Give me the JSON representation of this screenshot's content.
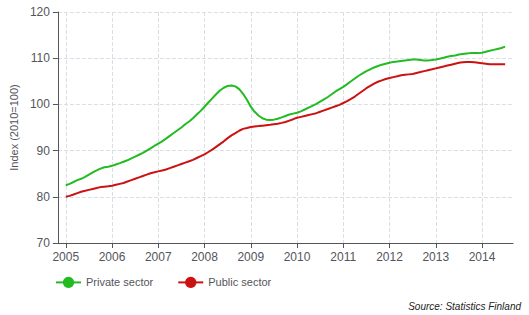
{
  "chart_data": {
    "type": "line",
    "ylabel": "Index (2010=100)",
    "annotations": [
      "Source: Statistics Finland"
    ],
    "x": [
      2005.0,
      2005.083,
      2005.167,
      2005.25,
      2005.333,
      2005.417,
      2005.5,
      2005.583,
      2005.667,
      2005.75,
      2005.833,
      2005.917,
      2006.0,
      2006.083,
      2006.167,
      2006.25,
      2006.333,
      2006.417,
      2006.5,
      2006.583,
      2006.667,
      2006.75,
      2006.833,
      2006.917,
      2007.0,
      2007.083,
      2007.167,
      2007.25,
      2007.333,
      2007.417,
      2007.5,
      2007.583,
      2007.667,
      2007.75,
      2007.833,
      2007.917,
      2008.0,
      2008.083,
      2008.167,
      2008.25,
      2008.333,
      2008.417,
      2008.5,
      2008.583,
      2008.667,
      2008.75,
      2008.833,
      2008.917,
      2009.0,
      2009.083,
      2009.167,
      2009.25,
      2009.333,
      2009.417,
      2009.5,
      2009.583,
      2009.667,
      2009.75,
      2009.833,
      2009.917,
      2010.0,
      2010.083,
      2010.167,
      2010.25,
      2010.333,
      2010.417,
      2010.5,
      2010.583,
      2010.667,
      2010.75,
      2010.833,
      2010.917,
      2011.0,
      2011.083,
      2011.167,
      2011.25,
      2011.333,
      2011.417,
      2011.5,
      2011.583,
      2011.667,
      2011.75,
      2011.833,
      2011.917,
      2012.0,
      2012.083,
      2012.167,
      2012.25,
      2012.333,
      2012.417,
      2012.5,
      2012.583,
      2012.667,
      2012.75,
      2012.833,
      2012.917,
      2013.0,
      2013.083,
      2013.167,
      2013.25,
      2013.333,
      2013.417,
      2013.5,
      2013.583,
      2013.667,
      2013.75,
      2013.833,
      2013.917,
      2014.0,
      2014.083,
      2014.167,
      2014.25,
      2014.333,
      2014.417,
      2014.5
    ],
    "series": [
      {
        "name": "Private sector",
        "color": "#22bb22",
        "values": [
          82.5,
          82.8,
          83.2,
          83.6,
          83.9,
          84.3,
          84.8,
          85.3,
          85.7,
          86.1,
          86.4,
          86.5,
          86.7,
          87.0,
          87.3,
          87.6,
          87.9,
          88.3,
          88.7,
          89.1,
          89.5,
          90.0,
          90.5,
          91.0,
          91.5,
          92.0,
          92.6,
          93.2,
          93.8,
          94.4,
          95.0,
          95.7,
          96.3,
          97.0,
          97.8,
          98.6,
          99.5,
          100.4,
          101.3,
          102.2,
          103.0,
          103.6,
          104.0,
          104.1,
          103.9,
          103.3,
          102.3,
          101.0,
          99.5,
          98.4,
          97.6,
          97.0,
          96.7,
          96.6,
          96.7,
          96.9,
          97.2,
          97.5,
          97.8,
          98.0,
          98.2,
          98.5,
          98.9,
          99.3,
          99.7,
          100.1,
          100.6,
          101.1,
          101.6,
          102.2,
          102.8,
          103.3,
          103.8,
          104.4,
          105.0,
          105.6,
          106.2,
          106.7,
          107.2,
          107.6,
          108.0,
          108.3,
          108.6,
          108.8,
          109.0,
          109.2,
          109.3,
          109.4,
          109.5,
          109.6,
          109.7,
          109.7,
          109.6,
          109.5,
          109.5,
          109.6,
          109.7,
          109.9,
          110.1,
          110.3,
          110.5,
          110.6,
          110.8,
          110.9,
          111.0,
          111.1,
          111.1,
          111.1,
          111.2,
          111.4,
          111.6,
          111.8,
          112.0,
          112.2,
          112.5
        ]
      },
      {
        "name": "Public sector",
        "color": "#cc1111",
        "values": [
          80.0,
          80.2,
          80.5,
          80.8,
          81.1,
          81.3,
          81.5,
          81.7,
          81.9,
          82.1,
          82.2,
          82.3,
          82.4,
          82.6,
          82.8,
          83.0,
          83.3,
          83.6,
          83.9,
          84.2,
          84.5,
          84.8,
          85.1,
          85.3,
          85.5,
          85.7,
          85.9,
          86.2,
          86.5,
          86.8,
          87.1,
          87.4,
          87.7,
          88.0,
          88.4,
          88.8,
          89.2,
          89.7,
          90.2,
          90.8,
          91.4,
          92.0,
          92.7,
          93.3,
          93.8,
          94.3,
          94.7,
          94.9,
          95.1,
          95.2,
          95.3,
          95.4,
          95.5,
          95.6,
          95.7,
          95.8,
          96.0,
          96.2,
          96.5,
          96.8,
          97.1,
          97.3,
          97.5,
          97.7,
          97.9,
          98.1,
          98.4,
          98.7,
          99.0,
          99.3,
          99.6,
          99.9,
          100.3,
          100.7,
          101.2,
          101.7,
          102.3,
          102.9,
          103.5,
          104.0,
          104.5,
          104.9,
          105.2,
          105.5,
          105.7,
          105.9,
          106.1,
          106.3,
          106.4,
          106.5,
          106.6,
          106.8,
          107.0,
          107.2,
          107.4,
          107.6,
          107.8,
          108.0,
          108.2,
          108.4,
          108.6,
          108.8,
          109.0,
          109.1,
          109.2,
          109.2,
          109.1,
          109.0,
          108.9,
          108.8,
          108.7,
          108.7,
          108.7,
          108.7,
          108.7
        ]
      }
    ],
    "xlim": [
      2004.83,
      2014.67
    ],
    "xticks": [
      2005,
      2006,
      2007,
      2008,
      2009,
      2010,
      2011,
      2012,
      2013,
      2014
    ],
    "ylim": [
      70,
      120
    ],
    "yticks": [
      70,
      80,
      90,
      100,
      110,
      120
    ],
    "grid": true,
    "legend": "bottom"
  }
}
